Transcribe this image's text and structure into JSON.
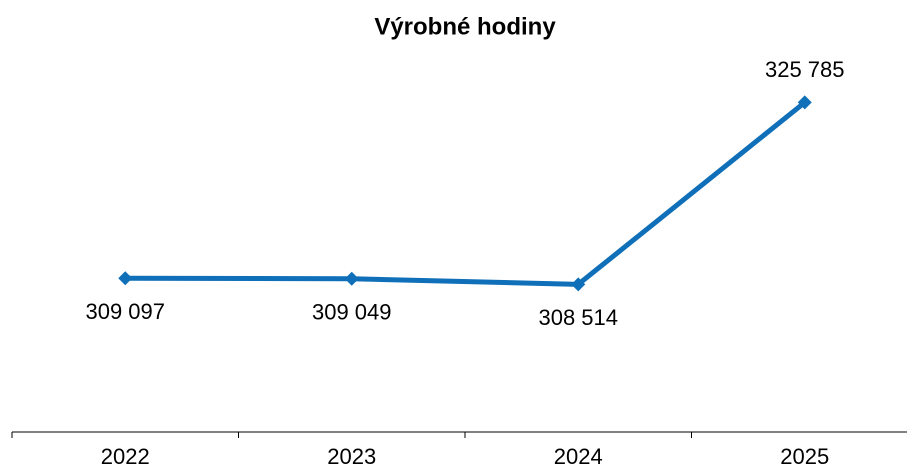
{
  "chart_data": {
    "type": "line",
    "title": "Výrobné hodiny",
    "categories": [
      "2022",
      "2023",
      "2024",
      "2025"
    ],
    "values": [
      309097,
      309049,
      308514,
      325785
    ],
    "value_labels": [
      "309 097",
      "309 049",
      "308 514",
      "325 785"
    ],
    "color": "#0f6fb8",
    "ylim": [
      294500,
      330000
    ]
  }
}
